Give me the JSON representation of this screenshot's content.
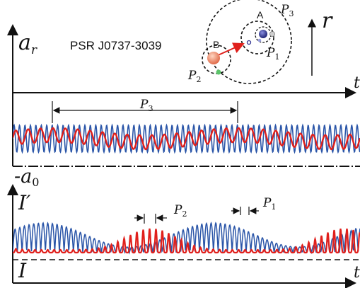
{
  "labels": {
    "pulsar_name": "PSR J0737-3039",
    "a_r": "a",
    "a_r_sub": "r",
    "t_top": "t",
    "t_bottom": "t",
    "r": "r",
    "P3_top": "P",
    "P3_top_sub": "3",
    "P3_orbit": "P",
    "P3_orbit_sub": "3",
    "P1_orbit": "P",
    "P1_orbit_sub": "1",
    "P2_orbit": "P",
    "P2_orbit_sub": "2",
    "A": "A",
    "B": "B",
    "neg_a0": "-a",
    "neg_a0_sub": "0",
    "I_prime": "I′",
    "I": "I",
    "P2_bottom": "P",
    "P2_bottom_sub": "2",
    "P1_bottom": "P",
    "P1_bottom_sub": "1"
  },
  "colors": {
    "blue_wave": "#2a55a8",
    "red_wave": "#e0201c",
    "axis": "#111111",
    "star_B": "#f08a6a",
    "star_A": "#2b2f8f",
    "planet": "#5cc46a"
  }
}
